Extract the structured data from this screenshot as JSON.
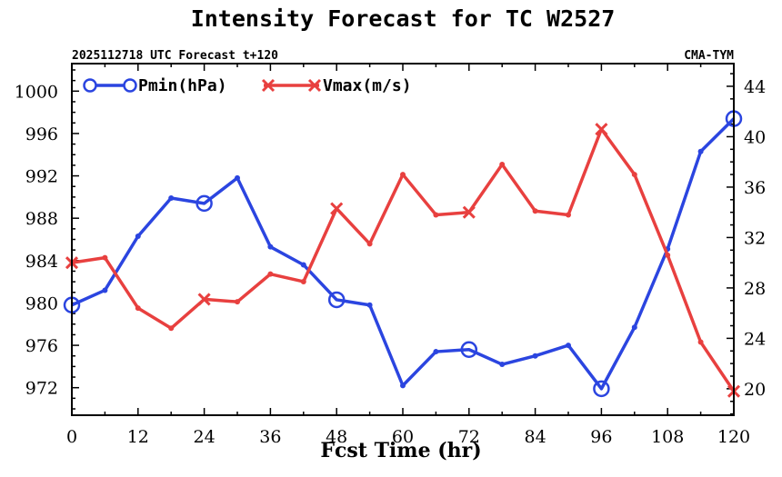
{
  "chart_data": {
    "type": "line",
    "title": "Intensity Forecast for TC W2527",
    "subtitle_left": "2025112718 UTC Forecast t+120",
    "subtitle_right": "CMA-TYM",
    "xlabel": "Fcst Time (hr)",
    "x": [
      0,
      6,
      12,
      18,
      24,
      30,
      36,
      42,
      48,
      54,
      60,
      66,
      72,
      78,
      84,
      90,
      96,
      102,
      108,
      114,
      120
    ],
    "xlim": [
      0,
      120
    ],
    "xticks": [
      "0",
      "12",
      "24",
      "36",
      "48",
      "60",
      "72",
      "84",
      "96",
      "108",
      "120"
    ],
    "ylim_left": [
      969.4,
      1002.6
    ],
    "yticks_left": [
      "972",
      "976",
      "980",
      "984",
      "988",
      "992",
      "996",
      "1000"
    ],
    "ylim_right": [
      17.9,
      45.8
    ],
    "yticks_right": [
      "20",
      "24",
      "28",
      "32",
      "36",
      "40",
      "44"
    ],
    "series": [
      {
        "name": "Pmin(hPa)",
        "axis": "left",
        "color": "#2b45e0",
        "marker": "circle",
        "values": [
          979.8,
          981.2,
          986.3,
          989.9,
          989.4,
          991.8,
          985.3,
          983.6,
          980.3,
          979.8,
          972.2,
          975.4,
          975.6,
          974.2,
          975.0,
          976.0,
          971.9,
          977.7,
          985.1,
          994.3,
          997.4
        ]
      },
      {
        "name": "Vmax(m/s)",
        "axis": "right",
        "color": "#e8403f",
        "marker": "x",
        "values": [
          30.0,
          30.4,
          26.4,
          24.8,
          27.1,
          26.9,
          29.1,
          28.5,
          34.3,
          31.5,
          37.0,
          33.8,
          34.0,
          37.8,
          34.1,
          33.8,
          40.6,
          37.0,
          30.6,
          23.7,
          19.8
        ]
      }
    ],
    "legend": "top-left"
  }
}
